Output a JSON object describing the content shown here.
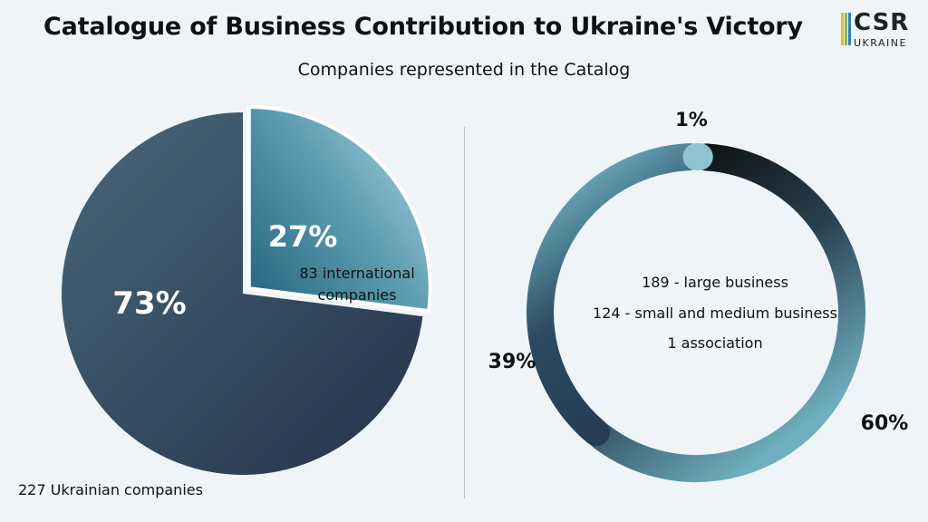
{
  "title": "Catalogue of Business Contribution to Ukraine's Victory",
  "subtitle": "Companies represented in the Catalog",
  "logo": {
    "word": "CSR",
    "sub": "UKRAINE",
    "bar_colors": [
      "#e9b824",
      "#8fb34a",
      "#2f7fb8"
    ]
  },
  "chart_data": [
    {
      "type": "pie",
      "slices": [
        {
          "label": "73%",
          "value": 73,
          "description": "227 Ukrainian companies",
          "color": "#33475b"
        },
        {
          "label": "27%",
          "value": 27,
          "description": "83 international companies",
          "color": "#4f8ea3"
        }
      ]
    },
    {
      "type": "pie",
      "style": "donut",
      "slices": [
        {
          "label": "60%",
          "value": 60,
          "description": "189 - large business",
          "color": "#0f1b24"
        },
        {
          "label": "39%",
          "value": 39,
          "description": "124 - small and medium business",
          "color": "#2e4257"
        },
        {
          "label": "1%",
          "value": 1,
          "description": "1 association",
          "color": "#8fc3d1"
        }
      ]
    }
  ]
}
